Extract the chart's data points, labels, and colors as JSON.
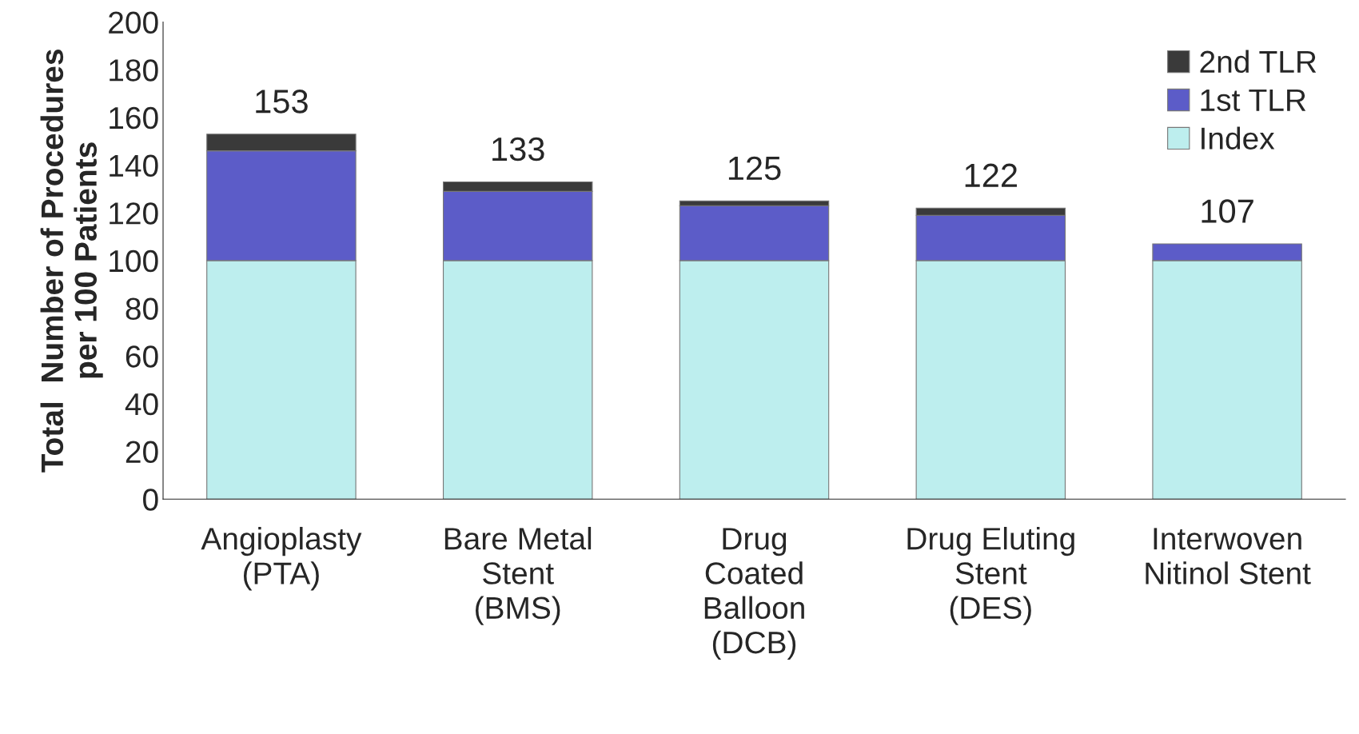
{
  "chart_data": {
    "type": "bar",
    "stacked": true,
    "ylabel": "Total  Number of Procedures\nper 100 Patients",
    "categories": [
      "Angioplasty\n(PTA)",
      "Bare Metal\nStent\n(BMS)",
      "Drug\nCoated\nBalloon\n(DCB)",
      "Drug Eluting\nStent\n(DES)",
      "Interwoven\nNitinol Stent"
    ],
    "series": [
      {
        "name": "Index",
        "color": "#bdeeee",
        "values": [
          100,
          100,
          100,
          100,
          100
        ]
      },
      {
        "name": "1st TLR",
        "color": "#5c5cc8",
        "values": [
          46,
          29,
          23,
          19,
          7
        ]
      },
      {
        "name": "2nd TLR",
        "color": "#3a3a3a",
        "values": [
          7,
          4,
          2,
          3,
          null
        ]
      }
    ],
    "totals": [
      "153",
      "133",
      "125",
      "122",
      "107"
    ],
    "ylim": [
      0,
      200
    ],
    "yticks": [
      0,
      20,
      40,
      60,
      80,
      100,
      120,
      140,
      160,
      180,
      200
    ],
    "grid": false,
    "legend": "top right"
  }
}
